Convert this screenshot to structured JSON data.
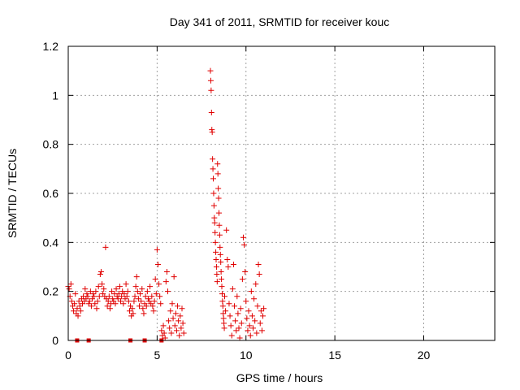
{
  "chart_data": {
    "type": "scatter",
    "title": "Day 341 of 2011, SRMTID for receiver kouc",
    "xlabel": "GPS time / hours",
    "ylabel": "SRMTID / TECUs",
    "xlim": [
      0,
      24
    ],
    "ylim": [
      0,
      1.2
    ],
    "xticks": [
      0,
      5,
      10,
      15,
      20
    ],
    "xtick_labels": [
      "0",
      "5",
      "10",
      "15",
      "20"
    ],
    "yticks": [
      0,
      0.2,
      0.4,
      0.6,
      0.8,
      1.0,
      1.2
    ],
    "ytick_labels": [
      "0",
      "0.2",
      "0.4",
      "0.6",
      "0.8",
      "1",
      "1.2"
    ],
    "grid": true,
    "marker": "plus",
    "color": "#e00000",
    "series": [
      {
        "name": "SRMTID",
        "points": [
          [
            0.0,
            0.22
          ],
          [
            0.05,
            0.21
          ],
          [
            0.1,
            0.18
          ],
          [
            0.15,
            0.23
          ],
          [
            0.2,
            0.16
          ],
          [
            0.25,
            0.14
          ],
          [
            0.3,
            0.12
          ],
          [
            0.35,
            0.15
          ],
          [
            0.4,
            0.19
          ],
          [
            0.45,
            0.11
          ],
          [
            0.5,
            0.13
          ],
          [
            0.55,
            0.1
          ],
          [
            0.6,
            0.16
          ],
          [
            0.65,
            0.14
          ],
          [
            0.7,
            0.12
          ],
          [
            0.75,
            0.17
          ],
          [
            0.8,
            0.15
          ],
          [
            0.85,
            0.18
          ],
          [
            0.9,
            0.16
          ],
          [
            0.95,
            0.21
          ],
          [
            1.0,
            0.17
          ],
          [
            1.05,
            0.19
          ],
          [
            1.1,
            0.18
          ],
          [
            1.15,
            0.15
          ],
          [
            1.2,
            0.16
          ],
          [
            1.25,
            0.2
          ],
          [
            1.3,
            0.14
          ],
          [
            1.35,
            0.17
          ],
          [
            1.4,
            0.19
          ],
          [
            1.45,
            0.18
          ],
          [
            1.5,
            0.15
          ],
          [
            1.55,
            0.2
          ],
          [
            1.6,
            0.13
          ],
          [
            1.65,
            0.16
          ],
          [
            1.7,
            0.22
          ],
          [
            1.75,
            0.18
          ],
          [
            1.8,
            0.27
          ],
          [
            1.85,
            0.28
          ],
          [
            1.9,
            0.23
          ],
          [
            1.95,
            0.19
          ],
          [
            2.0,
            0.21
          ],
          [
            2.05,
            0.18
          ],
          [
            2.1,
            0.38
          ],
          [
            2.15,
            0.17
          ],
          [
            2.2,
            0.14
          ],
          [
            2.25,
            0.16
          ],
          [
            2.3,
            0.18
          ],
          [
            2.35,
            0.13
          ],
          [
            2.4,
            0.15
          ],
          [
            2.45,
            0.2
          ],
          [
            2.5,
            0.17
          ],
          [
            2.55,
            0.16
          ],
          [
            2.6,
            0.19
          ],
          [
            2.65,
            0.15
          ],
          [
            2.7,
            0.21
          ],
          [
            2.75,
            0.18
          ],
          [
            2.8,
            0.17
          ],
          [
            2.85,
            0.19
          ],
          [
            2.9,
            0.22
          ],
          [
            2.95,
            0.16
          ],
          [
            3.0,
            0.18
          ],
          [
            3.05,
            0.2
          ],
          [
            3.1,
            0.15
          ],
          [
            3.15,
            0.19
          ],
          [
            3.2,
            0.17
          ],
          [
            3.25,
            0.23
          ],
          [
            3.3,
            0.18
          ],
          [
            3.35,
            0.2
          ],
          [
            3.4,
            0.16
          ],
          [
            3.45,
            0.12
          ],
          [
            3.5,
            0.14
          ],
          [
            3.55,
            0.1
          ],
          [
            3.6,
            0.13
          ],
          [
            3.65,
            0.11
          ],
          [
            3.7,
            0.16
          ],
          [
            3.75,
            0.18
          ],
          [
            3.8,
            0.22
          ],
          [
            3.85,
            0.26
          ],
          [
            3.9,
            0.2
          ],
          [
            3.95,
            0.17
          ],
          [
            4.0,
            0.14
          ],
          [
            4.05,
            0.19
          ],
          [
            4.1,
            0.16
          ],
          [
            4.15,
            0.21
          ],
          [
            4.2,
            0.13
          ],
          [
            4.25,
            0.11
          ],
          [
            4.3,
            0.15
          ],
          [
            4.35,
            0.18
          ],
          [
            4.4,
            0.14
          ],
          [
            4.45,
            0.2
          ],
          [
            4.5,
            0.17
          ],
          [
            4.55,
            0.16
          ],
          [
            4.6,
            0.22
          ],
          [
            4.65,
            0.15
          ],
          [
            4.7,
            0.18
          ],
          [
            4.75,
            0.14
          ],
          [
            4.8,
            0.12
          ],
          [
            4.85,
            0.16
          ],
          [
            4.9,
            0.25
          ],
          [
            4.95,
            0.19
          ],
          [
            5.0,
            0.37
          ],
          [
            5.05,
            0.31
          ],
          [
            5.1,
            0.23
          ],
          [
            5.15,
            0.18
          ],
          [
            5.2,
            0.15
          ],
          [
            5.25,
            0.04
          ],
          [
            5.3,
            0.02
          ],
          [
            5.35,
            0.06
          ],
          [
            5.4,
            0.03
          ],
          [
            5.45,
            0.01
          ],
          [
            5.5,
            0.24
          ],
          [
            5.55,
            0.28
          ],
          [
            5.6,
            0.2
          ],
          [
            5.65,
            0.08
          ],
          [
            5.7,
            0.05
          ],
          [
            5.75,
            0.12
          ],
          [
            5.8,
            0.03
          ],
          [
            5.85,
            0.15
          ],
          [
            5.9,
            0.09
          ],
          [
            5.95,
            0.26
          ],
          [
            6.0,
            0.06
          ],
          [
            6.05,
            0.11
          ],
          [
            6.1,
            0.04
          ],
          [
            6.15,
            0.14
          ],
          [
            6.2,
            0.08
          ],
          [
            6.25,
            0.02
          ],
          [
            6.3,
            0.1
          ],
          [
            6.35,
            0.05
          ],
          [
            6.4,
            0.13
          ],
          [
            6.45,
            0.07
          ],
          [
            6.5,
            0.03
          ],
          [
            8.0,
            1.1
          ],
          [
            8.02,
            1.06
          ],
          [
            8.04,
            1.02
          ],
          [
            8.06,
            0.93
          ],
          [
            8.08,
            0.86
          ],
          [
            8.1,
            0.85
          ],
          [
            8.12,
            0.74
          ],
          [
            8.14,
            0.7
          ],
          [
            8.16,
            0.66
          ],
          [
            8.18,
            0.6
          ],
          [
            8.2,
            0.55
          ],
          [
            8.22,
            0.5
          ],
          [
            8.24,
            0.48
          ],
          [
            8.26,
            0.44
          ],
          [
            8.28,
            0.4
          ],
          [
            8.3,
            0.36
          ],
          [
            8.32,
            0.33
          ],
          [
            8.34,
            0.3
          ],
          [
            8.36,
            0.27
          ],
          [
            8.38,
            0.24
          ],
          [
            8.4,
            0.72
          ],
          [
            8.42,
            0.68
          ],
          [
            8.44,
            0.62
          ],
          [
            8.46,
            0.58
          ],
          [
            8.48,
            0.52
          ],
          [
            8.5,
            0.47
          ],
          [
            8.52,
            0.43
          ],
          [
            8.54,
            0.38
          ],
          [
            8.56,
            0.35
          ],
          [
            8.58,
            0.32
          ],
          [
            8.6,
            0.28
          ],
          [
            8.62,
            0.25
          ],
          [
            8.64,
            0.22
          ],
          [
            8.66,
            0.19
          ],
          [
            8.68,
            0.16
          ],
          [
            8.7,
            0.14
          ],
          [
            8.72,
            0.11
          ],
          [
            8.74,
            0.09
          ],
          [
            8.76,
            0.07
          ],
          [
            8.78,
            0.05
          ],
          [
            8.8,
            0.18
          ],
          [
            8.85,
            0.12
          ],
          [
            8.9,
            0.45
          ],
          [
            8.95,
            0.33
          ],
          [
            9.0,
            0.3
          ],
          [
            9.05,
            0.15
          ],
          [
            9.1,
            0.1
          ],
          [
            9.15,
            0.06
          ],
          [
            9.2,
            0.02
          ],
          [
            9.25,
            0.21
          ],
          [
            9.3,
            0.31
          ],
          [
            9.35,
            0.14
          ],
          [
            9.4,
            0.08
          ],
          [
            9.45,
            0.04
          ],
          [
            9.5,
            0.18
          ],
          [
            9.55,
            0.11
          ],
          [
            9.6,
            0.05
          ],
          [
            9.65,
            0.01
          ],
          [
            9.7,
            0.13
          ],
          [
            9.75,
            0.07
          ],
          [
            9.8,
            0.25
          ],
          [
            9.85,
            0.42
          ],
          [
            9.9,
            0.39
          ],
          [
            9.95,
            0.28
          ],
          [
            10.0,
            0.16
          ],
          [
            10.05,
            0.09
          ],
          [
            10.1,
            0.04
          ],
          [
            10.15,
            0.12
          ],
          [
            10.2,
            0.06
          ],
          [
            10.25,
            0.02
          ],
          [
            10.3,
            0.2
          ],
          [
            10.35,
            0.1
          ],
          [
            10.4,
            0.05
          ],
          [
            10.45,
            0.17
          ],
          [
            10.5,
            0.08
          ],
          [
            10.55,
            0.23
          ],
          [
            10.6,
            0.03
          ],
          [
            10.65,
            0.14
          ],
          [
            10.7,
            0.31
          ],
          [
            10.75,
            0.27
          ],
          [
            10.8,
            0.07
          ],
          [
            10.85,
            0.12
          ],
          [
            10.9,
            0.04
          ],
          [
            10.95,
            0.1
          ],
          [
            11.0,
            0.13
          ]
        ]
      }
    ],
    "zero_markers": [
      0.5,
      1.15,
      3.5,
      4.3,
      5.25
    ]
  }
}
